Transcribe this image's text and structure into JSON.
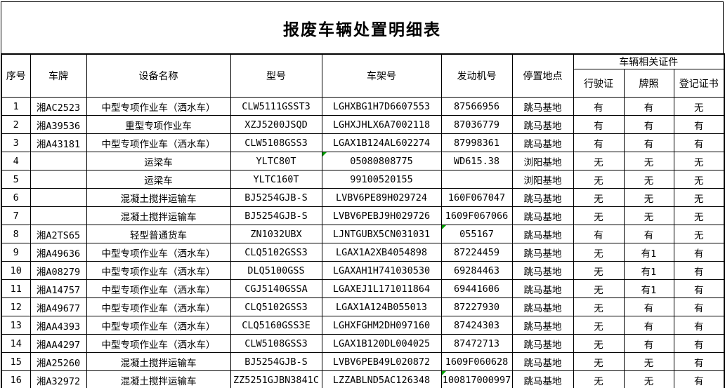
{
  "title": "报废车辆处置明细表",
  "colors": {
    "border": "#000000",
    "background": "#ffffff",
    "error_flag_green": "#00a000"
  },
  "table": {
    "headers": {
      "seq": "序号",
      "plate": "车牌",
      "device": "设备名称",
      "model": "型号",
      "frame": "车架号",
      "engine": "发动机号",
      "location": "停置地点",
      "cert_group": "车辆相关证件",
      "cert_driving": "行驶证",
      "cert_plate": "牌照",
      "cert_registration": "登记证书"
    },
    "rows": [
      {
        "seq": "1",
        "plate": "湘AC2523",
        "device": "中型专项作业车（洒水车）",
        "model": "CLW5111GSST3",
        "frame": "LGHXBG1H7D6607553",
        "engine": "87566956",
        "location": "跳马基地",
        "cert_driving": "有",
        "cert_plate": "有",
        "cert_registration": "无",
        "frame_flag": false,
        "engine_flag": false
      },
      {
        "seq": "2",
        "plate": "湘A39536",
        "device": "重型专项作业车",
        "model": "XZJ5200JSQD",
        "frame": "LGHXJHLX6A7002118",
        "engine": "87036779",
        "location": "跳马基地",
        "cert_driving": "有",
        "cert_plate": "有",
        "cert_registration": "有",
        "frame_flag": false,
        "engine_flag": false
      },
      {
        "seq": "3",
        "plate": "湘A43181",
        "device": "中型专项作业车（洒水车）",
        "model": "CLW5108GSS3",
        "frame": "LGAX1B124AL602274",
        "engine": "87998361",
        "location": "跳马基地",
        "cert_driving": "有",
        "cert_plate": "有",
        "cert_registration": "有",
        "frame_flag": false,
        "engine_flag": false
      },
      {
        "seq": "4",
        "plate": "",
        "device": "运梁车",
        "model": "YLTC80T",
        "frame": "05080808775",
        "engine": "WD615.38",
        "location": "浏阳基地",
        "cert_driving": "无",
        "cert_plate": "无",
        "cert_registration": "无",
        "frame_flag": true,
        "engine_flag": false
      },
      {
        "seq": "5",
        "plate": "",
        "device": "运梁车",
        "model": "YLTC160T",
        "frame": "99100520155",
        "engine": "",
        "location": "浏阳基地",
        "cert_driving": "无",
        "cert_plate": "无",
        "cert_registration": "无",
        "frame_flag": false,
        "engine_flag": false
      },
      {
        "seq": "6",
        "plate": "",
        "device": "混凝土搅拌运输车",
        "model": "BJ5254GJB-S",
        "frame": "LVBV6PE89H029724",
        "engine": "160F067047",
        "location": "跳马基地",
        "cert_driving": "无",
        "cert_plate": "无",
        "cert_registration": "无",
        "frame_flag": false,
        "engine_flag": false
      },
      {
        "seq": "7",
        "plate": "",
        "device": "混凝土搅拌运输车",
        "model": "BJ5254GJB-S",
        "frame": "LVBV6PEBJ9H029726",
        "engine": "1609F067066",
        "location": "跳马基地",
        "cert_driving": "无",
        "cert_plate": "无",
        "cert_registration": "无",
        "frame_flag": false,
        "engine_flag": false
      },
      {
        "seq": "8",
        "plate": "湘A2TS65",
        "device": "轻型普通货车",
        "model": "ZN1032UBX",
        "frame": "LJNTGUBX5CN031031",
        "engine": "055167",
        "location": "跳马基地",
        "cert_driving": "有",
        "cert_plate": "有",
        "cert_registration": "无",
        "frame_flag": false,
        "engine_flag": true
      },
      {
        "seq": "9",
        "plate": "湘A49636",
        "device": "中型专项作业车（洒水车）",
        "model": "CLQ5102GSS3",
        "frame": "LGAX1A2XB4054898",
        "engine": "87224459",
        "location": "跳马基地",
        "cert_driving": "无",
        "cert_plate": "有1",
        "cert_registration": "有",
        "frame_flag": false,
        "engine_flag": false
      },
      {
        "seq": "10",
        "plate": "湘A08279",
        "device": "中型专项作业车（洒水车）",
        "model": "DLQ5100GSS",
        "frame": "LGAXAH1H741030530",
        "engine": "69284463",
        "location": "跳马基地",
        "cert_driving": "无",
        "cert_plate": "有1",
        "cert_registration": "有",
        "frame_flag": false,
        "engine_flag": false
      },
      {
        "seq": "11",
        "plate": "湘A14757",
        "device": "中型专项作业车（洒水车）",
        "model": "CGJ5140GSSA",
        "frame": "LGAXEJ1L171011864",
        "engine": "69441606",
        "location": "跳马基地",
        "cert_driving": "无",
        "cert_plate": "有1",
        "cert_registration": "有",
        "frame_flag": false,
        "engine_flag": false
      },
      {
        "seq": "12",
        "plate": "湘A49677",
        "device": "中型专项作业车（洒水车）",
        "model": "CLQ5102GSS3",
        "frame": "LGAX1A124B055013",
        "engine": "87227930",
        "location": "跳马基地",
        "cert_driving": "无",
        "cert_plate": "有",
        "cert_registration": "有",
        "frame_flag": false,
        "engine_flag": false
      },
      {
        "seq": "13",
        "plate": "湘AA4393",
        "device": "中型专项作业车（洒水车）",
        "model": "CLQ5160GSS3E",
        "frame": "LGHXFGHM2DH097160",
        "engine": "87424303",
        "location": "跳马基地",
        "cert_driving": "无",
        "cert_plate": "有",
        "cert_registration": "有",
        "frame_flag": false,
        "engine_flag": false
      },
      {
        "seq": "14",
        "plate": "湘AA4297",
        "device": "中型专项作业车（洒水车）",
        "model": "CLW5108GSS3",
        "frame": "LGAX1B120DL004025",
        "engine": "87472713",
        "location": "跳马基地",
        "cert_driving": "无",
        "cert_plate": "有",
        "cert_registration": "有",
        "frame_flag": false,
        "engine_flag": false
      },
      {
        "seq": "15",
        "plate": "湘A25260",
        "device": "混凝土搅拌运输车",
        "model": "BJ5254GJB-S",
        "frame": "LVBV6PEB49L020872",
        "engine": "1609F060628",
        "location": "跳马基地",
        "cert_driving": "无",
        "cert_plate": "无",
        "cert_registration": "有",
        "frame_flag": false,
        "engine_flag": false
      },
      {
        "seq": "16",
        "plate": "湘A32972",
        "device": "混凝土搅拌运输车",
        "model": "ZZ5251GJBN3841C",
        "frame": "LZZABLND5AC126348",
        "engine": "100817000997",
        "location": "跳马基地",
        "cert_driving": "无",
        "cert_plate": "无",
        "cert_registration": "有",
        "frame_flag": false,
        "engine_flag": true
      }
    ]
  }
}
